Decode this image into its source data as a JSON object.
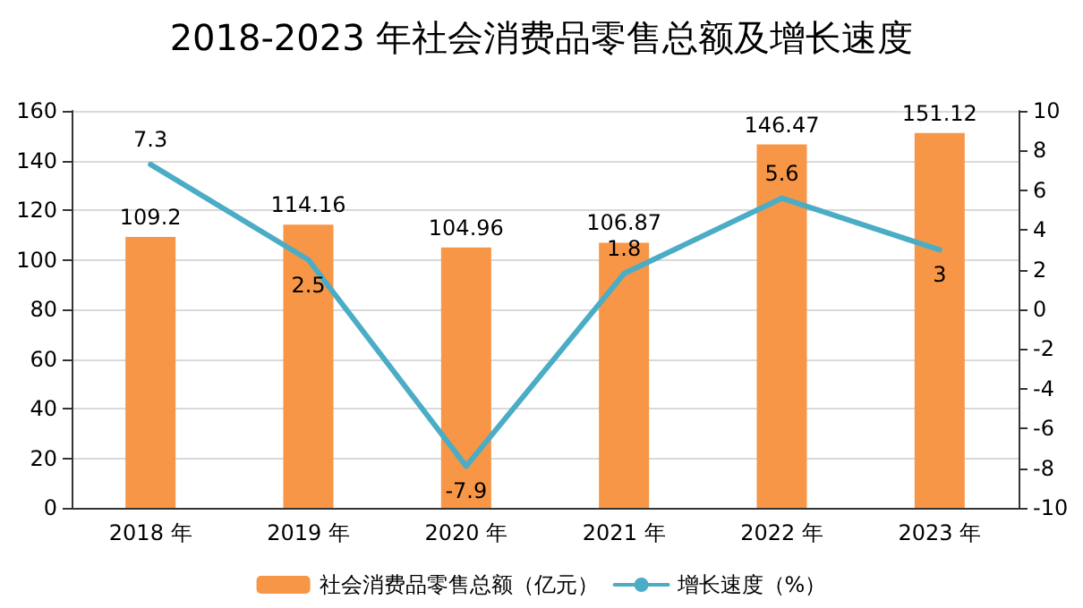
{
  "chart_data": {
    "type": "bar",
    "title": "2018-2023 年社会消费品零售总额及增长速度",
    "categories": [
      "2018 年",
      "2019 年",
      "2020 年",
      "2021 年",
      "2022 年",
      "2023 年"
    ],
    "series": [
      {
        "name": "社会消费品零售总额（亿元）",
        "color": "#f79646",
        "values": [
          109.2,
          114.16,
          104.96,
          106.87,
          146.47,
          151.12
        ]
      },
      {
        "name": "增长速度（%）",
        "type": "line",
        "axis": "y2",
        "color": "#4bacc6",
        "values": [
          7.3,
          2.5,
          -7.9,
          1.8,
          5.6,
          3
        ]
      }
    ],
    "ylim": [
      0,
      160
    ],
    "yticks": [
      0,
      20,
      40,
      60,
      80,
      100,
      120,
      140,
      160
    ],
    "y2lim": [
      -10,
      10
    ],
    "y2ticks": [
      -10,
      -8,
      -6,
      -4,
      -2,
      0,
      2,
      4,
      6,
      8,
      10
    ],
    "grid": "y",
    "legend": "bottom",
    "data_labels": true,
    "marker": "none",
    "line_style": "solid"
  }
}
